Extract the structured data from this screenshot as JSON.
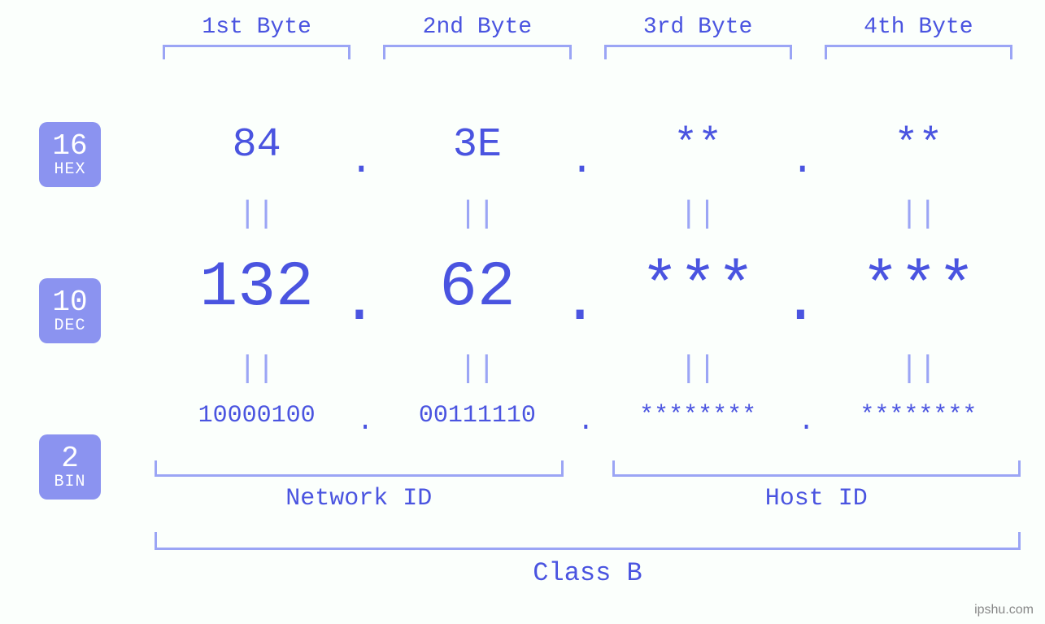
{
  "colors": {
    "background": "#fbfffc",
    "primary": "#4a54e0",
    "light": "#9ba5f5",
    "badge_bg": "#8b93f0",
    "badge_text": "#ffffff"
  },
  "fonts": {
    "family_mono": "Courier New, monospace",
    "colhead_size": 28,
    "hex_size": 50,
    "dec_size": 78,
    "bin_size": 30,
    "eq_size": 38,
    "botlabel_size": 30,
    "classlabel_size": 32,
    "badge_num_size": 36,
    "badge_abbr_size": 20
  },
  "columns": [
    {
      "label": "1st Byte"
    },
    {
      "label": "2nd Byte"
    },
    {
      "label": "3rd Byte"
    },
    {
      "label": "4th Byte"
    }
  ],
  "badges": [
    {
      "num": "16",
      "abbr": "HEX"
    },
    {
      "num": "10",
      "abbr": "DEC"
    },
    {
      "num": "2",
      "abbr": "BIN"
    }
  ],
  "rows": {
    "hex": [
      "84",
      "3E",
      "**",
      "**"
    ],
    "dec": [
      "132",
      "62",
      "***",
      "***"
    ],
    "bin": [
      "10000100",
      "00111110",
      "********",
      "********"
    ]
  },
  "eq_glyph": "||",
  "dot_glyph": ".",
  "bottom": {
    "network_label": "Network ID",
    "host_label": "Host ID",
    "class_label": "Class B"
  },
  "watermark": "ipshu.com"
}
